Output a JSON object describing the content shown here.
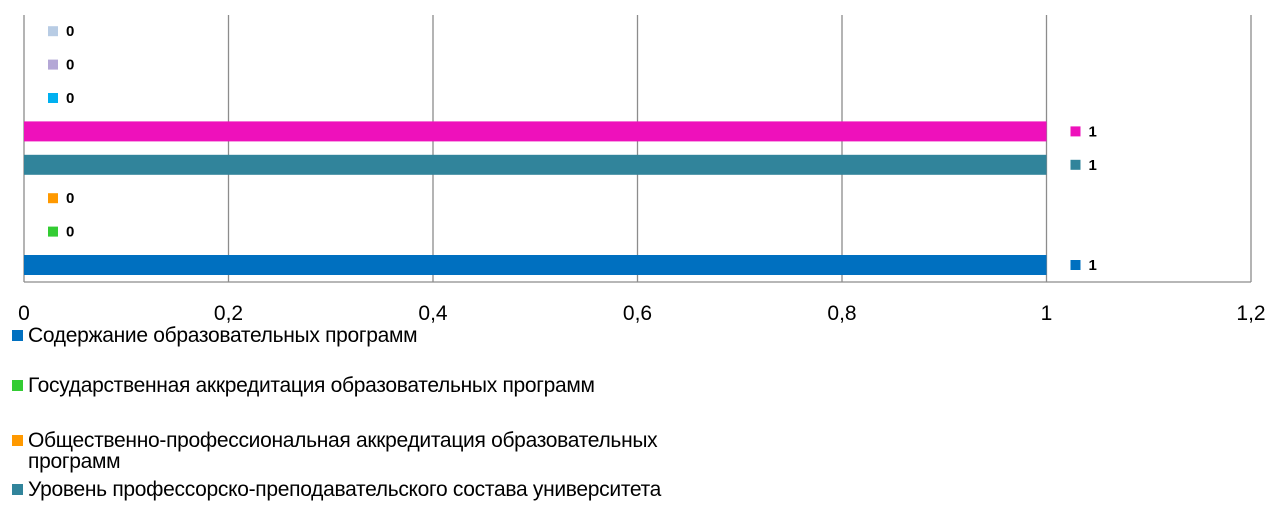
{
  "chart_data": {
    "type": "bar",
    "orientation": "horizontal",
    "xlim": [
      0,
      1.2
    ],
    "x_ticks": [
      "0",
      "0,2",
      "0,4",
      "0,6",
      "0,8",
      "1",
      "1,2"
    ],
    "grid": "vertical",
    "legend_position": "bottom",
    "series": [
      {
        "name": "Содержание образовательных программ",
        "value": 1,
        "label": "1",
        "color": "#0070C0"
      },
      {
        "name": "Государственная аккредитация образовательных программ",
        "value": 0,
        "label": "0",
        "color": "#33CC33"
      },
      {
        "name": "Общественно-профессиональная аккредитация образовательных программ",
        "value": 0,
        "label": "0",
        "color": "#FF9900"
      },
      {
        "name": "Уровень профессорско-преподавательского состава университета",
        "value": 1,
        "label": "1",
        "color": "#31849B"
      },
      {
        "name": "",
        "value": 1,
        "label": "1",
        "color": "#EE11BB"
      },
      {
        "name": "",
        "value": 0,
        "label": "0",
        "color": "#00B0F0"
      },
      {
        "name": "",
        "value": 0,
        "label": "0",
        "color": "#B4A7D6"
      },
      {
        "name": "",
        "value": 0,
        "label": "0",
        "color": "#B8CCE4"
      }
    ]
  }
}
